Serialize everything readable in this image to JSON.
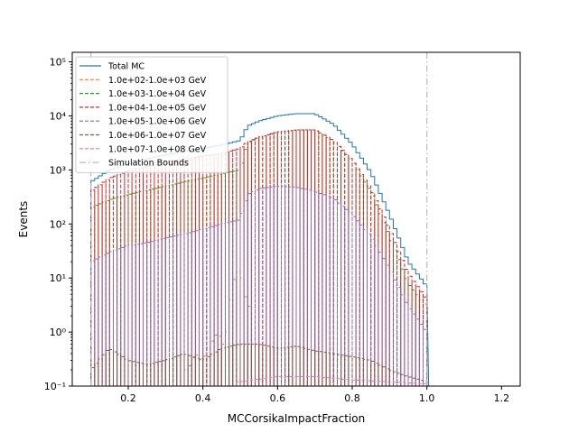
{
  "chart_data": {
    "type": "line",
    "xlabel": "MCCorsikaImpactFraction",
    "ylabel": "Events",
    "xlim": [
      0.05,
      1.25
    ],
    "ylim": [
      0.1,
      150000
    ],
    "yscale": "log",
    "x_ticks": [
      0.2,
      0.4,
      0.6,
      0.8,
      1.0,
      1.2
    ],
    "x_tick_labels": [
      "0.2",
      "0.4",
      "0.6",
      "0.8",
      "1.0",
      "1.2"
    ],
    "y_ticks": [
      0.1,
      1,
      10,
      100,
      1000,
      10000,
      100000
    ],
    "y_tick_labels": [
      "10⁻¹",
      "10⁰",
      "10¹",
      "10²",
      "10³",
      "10⁴",
      "10⁵"
    ],
    "grid": false,
    "legend_position": "top-left",
    "bin_edges": [
      0.1,
      1.0
    ],
    "bin_count": 90,
    "simulation_bounds": [
      0.1,
      1.0
    ],
    "series": [
      {
        "name": "Total MC",
        "color": "#1f77b4",
        "dash": "solid",
        "x": [
          0.1,
          0.15,
          0.2,
          0.25,
          0.3,
          0.35,
          0.4,
          0.45,
          0.5,
          0.52,
          0.55,
          0.6,
          0.65,
          0.7,
          0.75,
          0.8,
          0.85,
          0.9,
          0.95,
          1.0
        ],
        "y": [
          600,
          1000,
          1300,
          1600,
          1900,
          2200,
          2500,
          2900,
          3500,
          6500,
          8000,
          10000,
          11000,
          11000,
          7000,
          3000,
          900,
          150,
          20,
          7
        ]
      },
      {
        "name": "1.0e+02-1.0e+03 GeV",
        "color": "#ff7f0e",
        "dash": "dashed",
        "x": [
          0.36,
          0.38,
          0.4,
          0.42,
          0.44,
          0.46,
          0.48,
          0.5,
          0.52
        ],
        "y": [
          0.2,
          0.4,
          0.3,
          0.6,
          1,
          0.5,
          8,
          15,
          3
        ]
      },
      {
        "name": "1.0e+03-1.0e+04 GeV",
        "color": "#2ca02c",
        "dash": "dashed",
        "x": [
          0.1,
          0.15,
          0.2,
          0.25,
          0.3,
          0.35,
          0.4,
          0.45,
          0.5,
          0.52,
          0.55,
          0.6,
          0.65,
          0.7,
          0.75,
          0.8,
          0.85,
          0.9,
          0.95,
          1.0
        ],
        "y": [
          200,
          280,
          350,
          420,
          500,
          600,
          700,
          850,
          1000,
          3200,
          4000,
          5000,
          5500,
          5500,
          3500,
          1500,
          400,
          60,
          8,
          3
        ]
      },
      {
        "name": "1.0e+04-1.0e+05 GeV",
        "color": "#d62728",
        "dash": "dashed",
        "x": [
          0.1,
          0.15,
          0.2,
          0.25,
          0.3,
          0.35,
          0.4,
          0.45,
          0.5,
          0.52,
          0.55,
          0.6,
          0.65,
          0.7,
          0.75,
          0.8,
          0.85,
          0.9,
          0.95,
          1.0
        ],
        "y": [
          400,
          700,
          950,
          1150,
          1400,
          1600,
          1800,
          2000,
          2500,
          3300,
          4000,
          5000,
          5500,
          5500,
          3500,
          1500,
          450,
          80,
          12,
          4
        ]
      },
      {
        "name": "1.0e+05-1.0e+06 GeV",
        "color": "#9467bd",
        "dash": "dashed",
        "x": [
          0.1,
          0.15,
          0.2,
          0.25,
          0.3,
          0.35,
          0.4,
          0.45,
          0.5,
          0.52,
          0.55,
          0.6,
          0.65,
          0.7,
          0.75,
          0.8,
          0.85,
          0.9,
          0.95,
          1.0
        ],
        "y": [
          20,
          30,
          40,
          45,
          55,
          65,
          80,
          100,
          120,
          350,
          450,
          500,
          480,
          400,
          300,
          150,
          60,
          15,
          3,
          1
        ]
      },
      {
        "name": "1.0e+06-1.0e+07 GeV",
        "color": "#8c564b",
        "dash": "dashed",
        "x": [
          0.1,
          0.15,
          0.2,
          0.25,
          0.3,
          0.35,
          0.4,
          0.45,
          0.5,
          0.55,
          0.6,
          0.65,
          0.7,
          0.75,
          0.8,
          0.85,
          0.9,
          0.95,
          1.0
        ],
        "y": [
          0.2,
          0.5,
          0.3,
          0.25,
          0.3,
          0.4,
          0.3,
          0.5,
          0.6,
          0.6,
          0.5,
          0.55,
          0.45,
          0.4,
          0.35,
          0.3,
          0.2,
          0.15,
          0.12
        ]
      },
      {
        "name": "1.0e+07-1.0e+08 GeV",
        "color": "#e377c2",
        "dash": "dashed",
        "x": [
          0.5,
          0.6,
          0.7,
          0.8,
          0.9,
          1.0
        ],
        "y": [
          0.12,
          0.15,
          0.15,
          0.13,
          0.12,
          0.11
        ]
      },
      {
        "name": "Simulation Bounds",
        "color": "#bbbbbb",
        "dash": "dashdot",
        "x": [],
        "y": []
      }
    ]
  }
}
